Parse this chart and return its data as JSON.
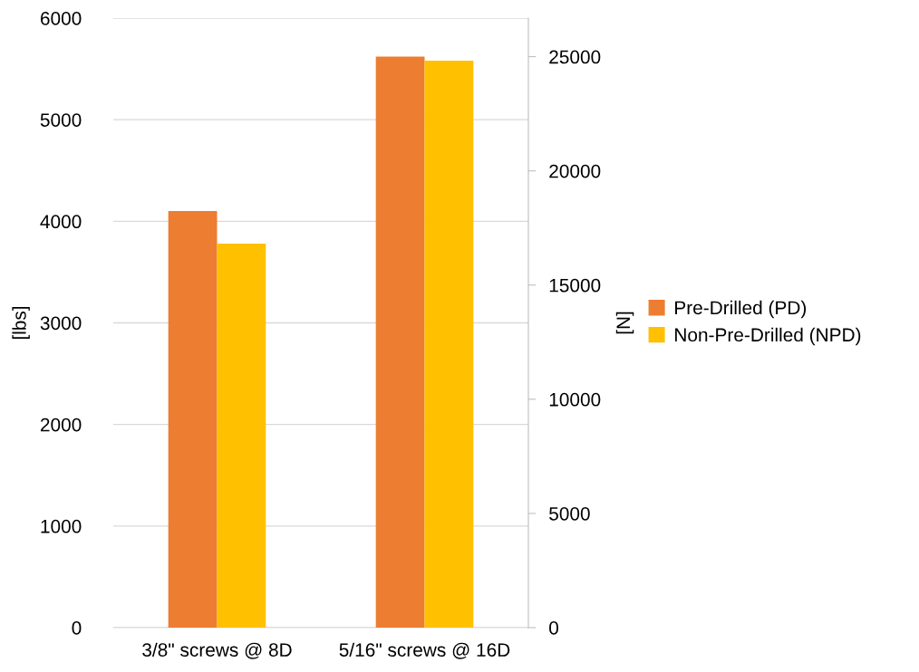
{
  "chart_data": {
    "type": "bar",
    "categories": [
      "3/8\" screws @ 8D",
      "5/16\" screws @ 16D"
    ],
    "series": [
      {
        "name": "Pre-Drilled (PD)",
        "color": "#ed7d31",
        "values": [
          4100,
          5620
        ]
      },
      {
        "name": "Non-Pre-Drilled (NPD)",
        "color": "#ffc000",
        "values": [
          3780,
          5580
        ]
      }
    ],
    "ylabel": "[lbs]",
    "y2label": "[N]",
    "ylim": [
      0,
      6000
    ],
    "yticks": [
      0,
      1000,
      2000,
      3000,
      4000,
      5000,
      6000
    ],
    "y2lim": [
      0,
      26689
    ],
    "y2ticks": [
      0,
      5000,
      10000,
      15000,
      20000,
      25000
    ],
    "grid": "y",
    "legend": "right"
  }
}
